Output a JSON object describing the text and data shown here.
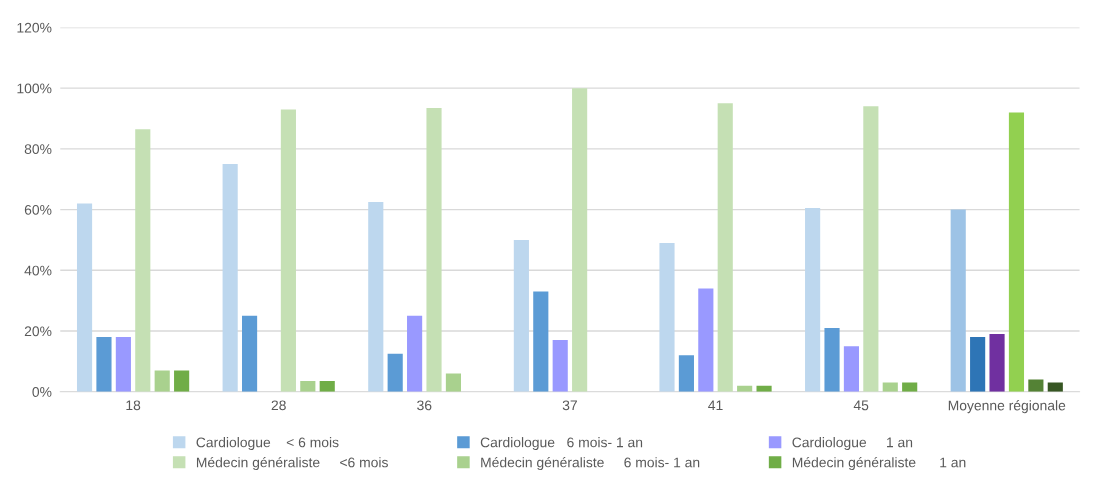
{
  "chart_data": {
    "type": "bar",
    "categories": [
      "18",
      "28",
      "36",
      "37",
      "41",
      "45",
      "Moyenne régionale"
    ],
    "series": [
      {
        "name": "Cardiologue    < 6 mois",
        "color": "#bdd7ee",
        "colors": [
          "#bdd7ee",
          "#bdd7ee",
          "#bdd7ee",
          "#bdd7ee",
          "#bdd7ee",
          "#bdd7ee",
          "#9dc3e6"
        ],
        "values": [
          62,
          75,
          62.5,
          50,
          49,
          60.5,
          60
        ]
      },
      {
        "name": "Cardiologue   6 mois- 1 an",
        "color": "#5b9bd5",
        "colors": [
          "#5b9bd5",
          "#5b9bd5",
          "#5b9bd5",
          "#5b9bd5",
          "#5b9bd5",
          "#5b9bd5",
          "#2e75b6"
        ],
        "values": [
          18,
          25,
          12.5,
          33,
          12,
          21,
          18
        ]
      },
      {
        "name": "Cardiologue     1 an",
        "color": "#9999ff",
        "colors": [
          "#9999ff",
          "#9999ff",
          "#9999ff",
          "#9999ff",
          "#9999ff",
          "#9999ff",
          "#7030a0"
        ],
        "values": [
          18,
          null,
          25,
          17,
          34,
          15,
          19
        ]
      },
      {
        "name": "Médecin généraliste     <6 mois",
        "color": "#c5e0b4",
        "colors": [
          "#c5e0b4",
          "#c5e0b4",
          "#c5e0b4",
          "#c5e0b4",
          "#c5e0b4",
          "#c5e0b4",
          "#92d050"
        ],
        "values": [
          86.5,
          93,
          93.5,
          100,
          95,
          94,
          92
        ]
      },
      {
        "name": "Médecin généraliste     6 mois- 1 an",
        "color": "#a9d18e",
        "colors": [
          "#a9d18e",
          "#a9d18e",
          "#a9d18e",
          "#a9d18e",
          "#a9d18e",
          "#a9d18e",
          "#548235"
        ],
        "values": [
          7,
          3.5,
          6,
          null,
          2,
          3,
          4
        ]
      },
      {
        "name": "Médecin généraliste      1 an",
        "color": "#70ad47",
        "colors": [
          "#70ad47",
          "#70ad47",
          "#70ad47",
          "#70ad47",
          "#70ad47",
          "#70ad47",
          "#375623"
        ],
        "values": [
          7,
          3.5,
          null,
          null,
          2,
          3,
          3
        ]
      }
    ],
    "ylim": [
      0,
      120
    ],
    "yticks": [
      {
        "value": 0,
        "label": "0%"
      },
      {
        "value": 20,
        "label": "20%"
      },
      {
        "value": 40,
        "label": "40%"
      },
      {
        "value": 60,
        "label": "60%"
      },
      {
        "value": 80,
        "label": "80%"
      },
      {
        "value": 100,
        "label": "100%"
      },
      {
        "value": 120,
        "label": "120%"
      }
    ],
    "grid": "y",
    "legend": "bottom"
  }
}
